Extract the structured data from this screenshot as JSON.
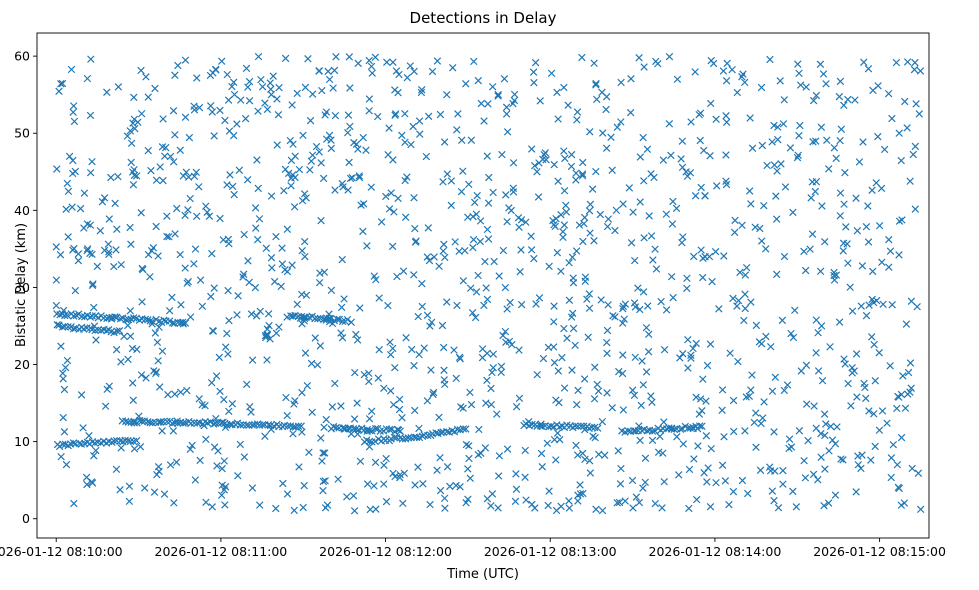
{
  "chart_data": {
    "type": "scatter",
    "title": "Detections in Delay",
    "xlabel": "Time (UTC)",
    "ylabel": "Bistatic Delay (km)",
    "xlim": [
      "2026-01-12 08:09:53",
      "2026-01-12 08:15:18"
    ],
    "ylim": [
      -2.5,
      63
    ],
    "xticks": [
      "2026-01-12 08:10:00",
      "2026-01-12 08:11:00",
      "2026-01-12 08:12:00",
      "2026-01-12 08:13:00",
      "2026-01-12 08:14:00",
      "2026-01-12 08:15:00"
    ],
    "yticks": [
      0,
      10,
      20,
      30,
      40,
      50,
      60
    ],
    "grid": false,
    "marker": "x",
    "color": "#1f77b4",
    "x_start": "2026-01-12 08:10:00",
    "x_end": "2026-01-12 08:15:15",
    "clutter_count": 1400,
    "clutter_y_range": [
      1,
      60
    ],
    "tracks": [
      {
        "x": [
          "2026-01-12 08:10:00",
          "2026-01-12 08:10:05",
          "2026-01-12 08:10:12",
          "2026-01-12 08:10:24",
          "2026-01-12 08:10:36",
          "2026-01-12 08:10:48"
        ],
        "y": [
          26.5,
          26.5,
          26.3,
          26.0,
          25.7,
          25.3
        ]
      },
      {
        "x": [
          "2026-01-12 08:10:00",
          "2026-01-12 08:10:12",
          "2026-01-12 08:10:24"
        ],
        "y": [
          25.0,
          24.6,
          24.2
        ]
      },
      {
        "x": [
          "2026-01-12 08:10:24",
          "2026-01-12 08:10:48",
          "2026-01-12 08:11:12",
          "2026-01-12 08:11:30"
        ],
        "y": [
          12.6,
          12.5,
          12.2,
          12.0
        ]
      },
      {
        "x": [
          "2026-01-12 08:11:24",
          "2026-01-12 08:11:36",
          "2026-01-12 08:11:48"
        ],
        "y": [
          26.3,
          26.0,
          25.6
        ]
      },
      {
        "x": [
          "2026-01-12 08:11:40",
          "2026-01-12 08:11:52",
          "2026-01-12 08:12:06"
        ],
        "y": [
          11.8,
          11.6,
          11.4
        ]
      },
      {
        "x": [
          "2026-01-12 08:12:50",
          "2026-01-12 08:13:04",
          "2026-01-12 08:13:18"
        ],
        "y": [
          12.2,
          12.0,
          11.8
        ]
      },
      {
        "x": [
          "2026-01-12 08:13:26",
          "2026-01-12 08:13:40",
          "2026-01-12 08:13:56"
        ],
        "y": [
          11.3,
          11.6,
          12.0
        ]
      },
      {
        "x": [
          "2026-01-12 08:11:52",
          "2026-01-12 08:12:10",
          "2026-01-12 08:12:30"
        ],
        "y": [
          10.0,
          10.6,
          11.6
        ]
      },
      {
        "x": [
          "2026-01-12 08:10:00",
          "2026-01-12 08:10:14",
          "2026-01-12 08:10:30"
        ],
        "y": [
          9.5,
          9.9,
          10.2
        ]
      }
    ]
  }
}
